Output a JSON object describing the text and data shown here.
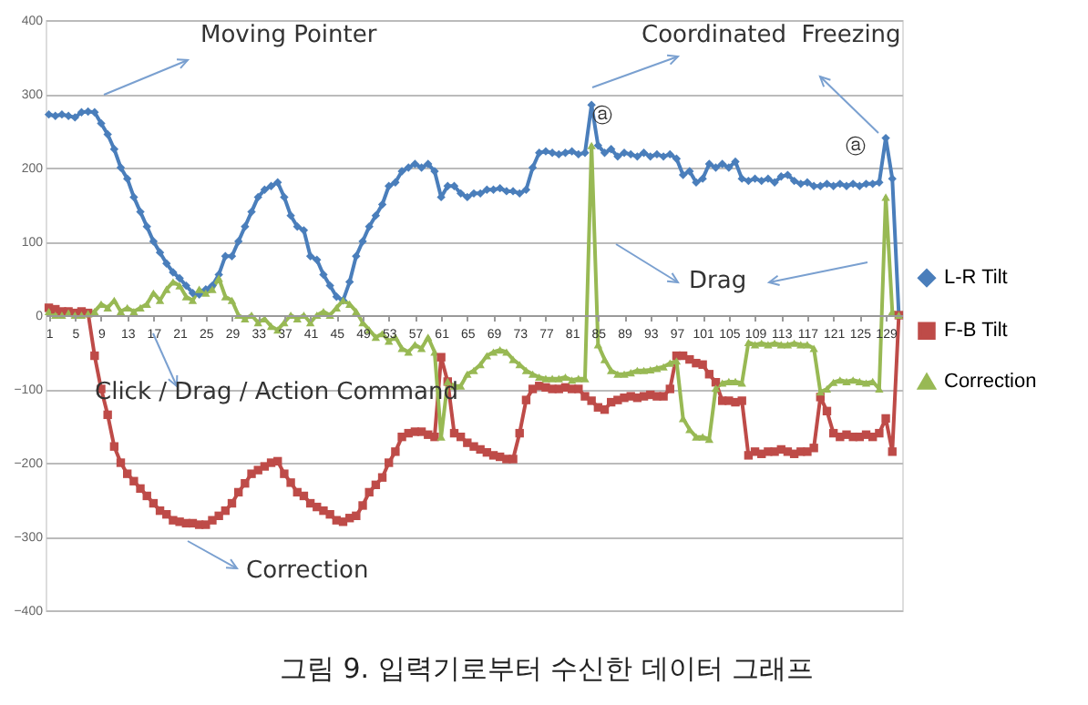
{
  "chart_data": {
    "type": "line",
    "title": "그림 9. 입력기로부터 수신한 데이터 그래프",
    "categories": [
      "1",
      null,
      null,
      null,
      "5",
      null,
      null,
      null,
      "9",
      null,
      null,
      null,
      "13",
      null,
      null,
      null,
      "17",
      null,
      null,
      null,
      "21",
      null,
      null,
      null,
      "25",
      null,
      null,
      null,
      "29",
      null,
      null,
      null,
      "33",
      null,
      null,
      null,
      "37",
      null,
      null,
      null,
      "41",
      null,
      null,
      null,
      "45",
      null,
      null,
      null,
      "49",
      null,
      null,
      null,
      "53",
      null,
      null,
      null,
      "57",
      null,
      null,
      null,
      "61",
      null,
      null,
      null,
      "65",
      null,
      null,
      null,
      "69",
      null,
      null,
      null,
      "73",
      null,
      null,
      null,
      "77",
      null,
      null,
      null,
      "81",
      null,
      null,
      null,
      "85",
      null,
      null,
      null,
      "89",
      null,
      null,
      null,
      "93",
      null,
      null,
      null,
      "97",
      null,
      null,
      null,
      "101",
      null,
      null,
      null,
      "105",
      null,
      null,
      null,
      "109",
      null,
      null,
      null,
      "113",
      null,
      null,
      null,
      "117",
      null,
      null,
      null,
      "121",
      null,
      null,
      null,
      "125",
      null,
      null,
      null,
      "129",
      null,
      null
    ],
    "ylim": [
      -400,
      400
    ],
    "yticks": [
      -400,
      -300,
      -200,
      -100,
      0,
      100,
      200,
      300,
      400
    ],
    "grid": "y",
    "legend": "right",
    "series": [
      {
        "name": "L-R Tilt",
        "color": "#4a7ebb",
        "marker": "diamond",
        "values": [
          272,
          270,
          272,
          270,
          268,
          275,
          276,
          275,
          260,
          245,
          225,
          200,
          185,
          160,
          140,
          120,
          100,
          85,
          70,
          58,
          50,
          40,
          30,
          28,
          35,
          40,
          55,
          80,
          80,
          100,
          120,
          140,
          160,
          170,
          175,
          180,
          160,
          135,
          120,
          115,
          80,
          75,
          55,
          40,
          25,
          20,
          45,
          80,
          100,
          120,
          135,
          150,
          175,
          180,
          195,
          200,
          205,
          200,
          205,
          195,
          160,
          175,
          175,
          165,
          160,
          165,
          165,
          170,
          170,
          172,
          168,
          168,
          165,
          170,
          200,
          220,
          222,
          220,
          218,
          220,
          222,
          218,
          220,
          285,
          230,
          220,
          225,
          215,
          220,
          218,
          215,
          220,
          215,
          218,
          215,
          218,
          212,
          190,
          195,
          180,
          185,
          205,
          200,
          205,
          200,
          208,
          185,
          182,
          185,
          182,
          185,
          180,
          188,
          190,
          182,
          178,
          180,
          175,
          175,
          178,
          175,
          178,
          175,
          178,
          175,
          178,
          178,
          180,
          240,
          185,
          0
        ]
      },
      {
        "name": "F-B Tilt",
        "color": "#be4b48",
        "marker": "square",
        "values": [
          10,
          8,
          5,
          5,
          3,
          5,
          3,
          -55,
          -100,
          -135,
          -178,
          -200,
          -215,
          -225,
          -235,
          -245,
          -255,
          -265,
          -270,
          -278,
          -280,
          -282,
          -282,
          -284,
          -284,
          -278,
          -272,
          -265,
          -255,
          -240,
          -228,
          -215,
          -210,
          -205,
          -200,
          -198,
          -215,
          -227,
          -240,
          -245,
          -255,
          -260,
          -265,
          -270,
          -278,
          -280,
          -275,
          -272,
          -258,
          -240,
          -230,
          -220,
          -200,
          -185,
          -165,
          -160,
          -158,
          -158,
          -162,
          -165,
          -57,
          -90,
          -160,
          -165,
          -173,
          -178,
          -182,
          -186,
          -190,
          -192,
          -195,
          -195,
          -160,
          -115,
          -100,
          -96,
          -98,
          -100,
          -100,
          -98,
          -100,
          -100,
          -110,
          -116,
          -125,
          -128,
          -118,
          -115,
          -112,
          -110,
          -112,
          -110,
          -108,
          -110,
          -110,
          -100,
          -55,
          -55,
          -60,
          -65,
          -67,
          -80,
          -91,
          -116,
          -116,
          -118,
          -116,
          -190,
          -185,
          -188,
          -185,
          -185,
          -182,
          -185,
          -188,
          -185,
          -185,
          -180,
          -111,
          -130,
          -160,
          -165,
          -162,
          -165,
          -165,
          -162,
          -165,
          -160,
          -140,
          -185,
          0
        ]
      },
      {
        "name": "Correction",
        "color": "#98b954",
        "marker": "triangle",
        "values": [
          5,
          0,
          0,
          3,
          0,
          0,
          2,
          5,
          15,
          10,
          20,
          5,
          10,
          5,
          10,
          15,
          30,
          20,
          35,
          45,
          40,
          25,
          20,
          35,
          30,
          35,
          50,
          25,
          20,
          0,
          -5,
          0,
          -10,
          -5,
          -15,
          -20,
          -10,
          0,
          -5,
          0,
          -10,
          0,
          5,
          0,
          10,
          20,
          15,
          5,
          -10,
          -20,
          -30,
          -25,
          -35,
          -30,
          -45,
          -50,
          -40,
          -45,
          -30,
          -50,
          -165,
          -90,
          -96,
          -96,
          -80,
          -75,
          -67,
          -55,
          -50,
          -47,
          -50,
          -60,
          -67,
          -75,
          -80,
          -84,
          -86,
          -86,
          -86,
          -84,
          -88,
          -86,
          -86,
          230,
          -40,
          -60,
          -75,
          -80,
          -80,
          -78,
          -75,
          -75,
          -74,
          -72,
          -70,
          -65,
          -62,
          -140,
          -155,
          -165,
          -165,
          -168,
          -99,
          -92,
          -90,
          -90,
          -92,
          -37,
          -40,
          -38,
          -40,
          -38,
          -40,
          -40,
          -38,
          -40,
          -40,
          -45,
          -104,
          -100,
          -91,
          -88,
          -90,
          -88,
          -90,
          -92,
          -90,
          -100,
          160,
          5,
          0
        ]
      }
    ],
    "annotations": [
      "Moving Pointer",
      "Coordinated  Freezing",
      "Drag",
      "Click / Drag / Action Command",
      "Correction",
      "ⓐ",
      "ⓐ"
    ]
  }
}
